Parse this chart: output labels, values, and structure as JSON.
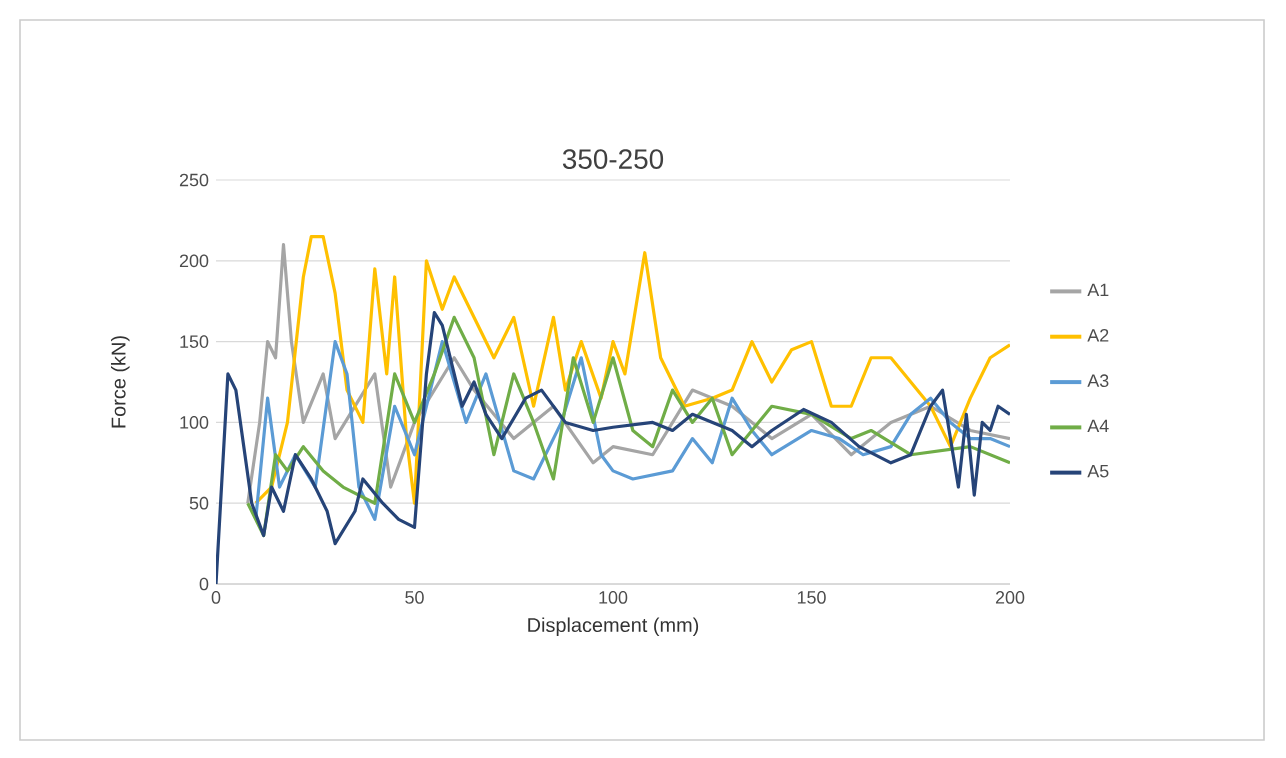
{
  "chart_data": {
    "type": "line",
    "title": "350-250",
    "xlabel": "Displacement (mm)",
    "ylabel": "Force (kN)",
    "xlim": [
      0,
      200
    ],
    "ylim": [
      0,
      250
    ],
    "xticks": [
      0,
      50,
      100,
      150,
      200
    ],
    "yticks": [
      0,
      50,
      100,
      150,
      200,
      250
    ],
    "grid": "y",
    "legend": "right",
    "marker": "none",
    "line_style": "solid",
    "series": [
      {
        "name": "A1",
        "color": "#a5a5a5",
        "x": [
          8,
          11,
          13,
          15,
          17,
          19,
          22,
          27,
          30,
          35,
          40,
          44,
          50,
          55,
          60,
          65,
          75,
          85,
          95,
          100,
          110,
          120,
          130,
          140,
          150,
          160,
          170,
          180,
          190,
          200
        ],
        "values": [
          50,
          100,
          150,
          140,
          210,
          150,
          100,
          130,
          90,
          110,
          130,
          60,
          100,
          120,
          140,
          120,
          90,
          110,
          75,
          85,
          80,
          120,
          110,
          90,
          105,
          80,
          100,
          110,
          95,
          90
        ]
      },
      {
        "name": "A2",
        "color": "#ffc000",
        "x": [
          10,
          14,
          18,
          22,
          24,
          27,
          30,
          33,
          37,
          40,
          43,
          45,
          48,
          50,
          53,
          57,
          60,
          65,
          70,
          75,
          80,
          85,
          88,
          92,
          97,
          100,
          103,
          108,
          112,
          118,
          125,
          130,
          135,
          140,
          145,
          150,
          155,
          160,
          165,
          170,
          180,
          185,
          190,
          195,
          200
        ],
        "values": [
          50,
          60,
          100,
          190,
          215,
          215,
          180,
          120,
          100,
          195,
          130,
          190,
          90,
          50,
          200,
          170,
          190,
          165,
          140,
          165,
          110,
          165,
          120,
          150,
          115,
          150,
          130,
          205,
          140,
          110,
          115,
          120,
          150,
          125,
          145,
          150,
          110,
          110,
          140,
          140,
          110,
          85,
          115,
          140,
          148
        ]
      },
      {
        "name": "A3",
        "color": "#5b9bd5",
        "x": [
          10,
          13,
          16,
          20,
          25,
          30,
          33,
          36,
          40,
          45,
          50,
          57,
          63,
          68,
          75,
          80,
          87,
          92,
          97,
          100,
          105,
          115,
          120,
          125,
          130,
          135,
          140,
          150,
          157,
          163,
          170,
          175,
          180,
          185,
          190,
          195,
          200
        ],
        "values": [
          40,
          115,
          60,
          80,
          60,
          150,
          130,
          60,
          40,
          110,
          80,
          150,
          100,
          130,
          70,
          65,
          100,
          140,
          80,
          70,
          65,
          70,
          90,
          75,
          115,
          95,
          80,
          95,
          90,
          80,
          85,
          105,
          115,
          100,
          90,
          90,
          85
        ]
      },
      {
        "name": "A4",
        "color": "#70ad47",
        "x": [
          8,
          12,
          15,
          18,
          22,
          27,
          32,
          40,
          45,
          50,
          55,
          60,
          65,
          70,
          75,
          80,
          85,
          90,
          95,
          100,
          105,
          110,
          115,
          120,
          125,
          130,
          140,
          150,
          160,
          165,
          175,
          190,
          200
        ],
        "values": [
          50,
          30,
          80,
          70,
          85,
          70,
          60,
          50,
          130,
          100,
          130,
          165,
          140,
          80,
          130,
          100,
          65,
          140,
          100,
          140,
          95,
          85,
          120,
          100,
          115,
          80,
          110,
          105,
          90,
          95,
          80,
          85,
          75
        ]
      },
      {
        "name": "A5",
        "color": "#264478",
        "x": [
          0,
          3,
          5,
          9,
          12,
          14,
          17,
          20,
          24,
          28,
          30,
          35,
          37,
          42,
          46,
          50,
          53,
          55,
          57,
          62,
          65,
          68,
          72,
          78,
          82,
          88,
          95,
          100,
          110,
          115,
          120,
          125,
          130,
          135,
          140,
          148,
          155,
          162,
          170,
          175,
          180,
          183,
          187,
          189,
          191,
          193,
          195,
          197,
          200
        ],
        "values": [
          0,
          130,
          120,
          50,
          30,
          60,
          45,
          80,
          65,
          45,
          25,
          45,
          65,
          50,
          40,
          35,
          130,
          168,
          160,
          110,
          125,
          105,
          90,
          115,
          120,
          100,
          95,
          97,
          100,
          95,
          105,
          100,
          95,
          85,
          95,
          108,
          100,
          85,
          75,
          80,
          110,
          120,
          60,
          105,
          55,
          100,
          95,
          110,
          105
        ]
      }
    ]
  }
}
